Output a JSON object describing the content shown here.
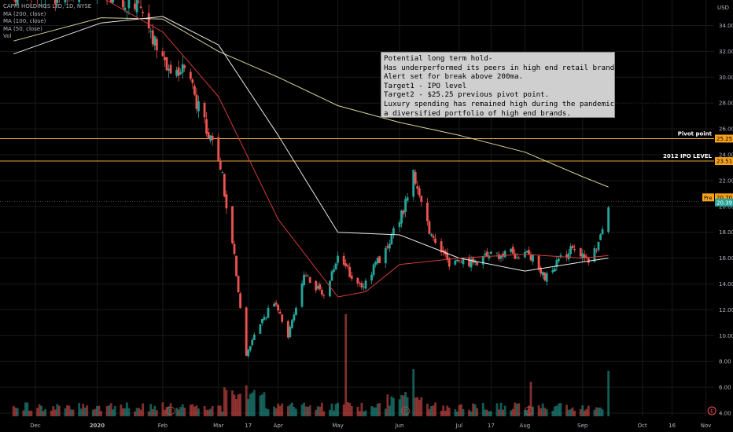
{
  "legend": {
    "symbol": "CAPRI HOLDINGS LTD, 1D, NYSE",
    "ma200": "MA (200, close)",
    "ma100": "MA (100, close)",
    "ma50": "MA (50, close)",
    "vol": "Vol"
  },
  "annotation": {
    "lines": [
      "Potential long term hold-",
      "Has underperformed its peers in high end retail brands.",
      "Alert set for break above 200ma.",
      "Target1 - IPO level",
      "Target2 - $25.25 previous pivot point.",
      "Luxury spending has remained high during the pandemic & CPRI has",
      "a diversified portfolio of high end brands."
    ]
  },
  "colors": {
    "background": "#000000",
    "up": "#26a69a",
    "down": "#ef5350",
    "ma200": "#d8d49a",
    "ma100": "#e8e8e8",
    "ma50": "#d43a3a",
    "hline": "#e8a93a",
    "grid": "#1a1a1a",
    "axis_text": "#b2b5be",
    "price_badge": "#f7a21b"
  },
  "icons": {
    "earnings": "earnings-marker-icon"
  },
  "chart_data": {
    "type": "candlestick",
    "ylim": [
      3.6,
      36
    ],
    "y_axis_label": "USD",
    "y_ticks": [
      "4.00",
      "6.00",
      "8.00",
      "10.00",
      "12.00",
      "14.00",
      "16.00",
      "18.00",
      "20.00",
      "22.00",
      "24.00",
      "26.00",
      "28.00",
      "30.00",
      "32.00",
      "34.00"
    ],
    "x_ticks": [
      "Dec",
      "2020",
      "Feb",
      "Mar",
      "17",
      "Apr",
      "May",
      "Jun",
      "Jul",
      "17",
      "Aug",
      "Sep",
      "Oct",
      "16",
      "Nov"
    ],
    "horizontal_lines": [
      {
        "label": "Pivot point",
        "value": "25.25",
        "price": 25.25
      },
      {
        "label": "2012 IPO LEVEL",
        "value": "23.51",
        "price": 23.51
      }
    ],
    "price_badges": [
      {
        "label": "Pre",
        "value": "20.70",
        "price": 20.7
      },
      {
        "label": "",
        "value": "20.39",
        "price": 20.39
      }
    ],
    "earnings_markers": [
      "Feb",
      "Jun",
      "Aug",
      "Nov"
    ],
    "anchors": [
      {
        "date": "2019-11-20",
        "price": 36.2
      },
      {
        "date": "2020-01-03",
        "price": 36.8
      },
      {
        "date": "2020-01-22",
        "price": 35.5
      },
      {
        "date": "2020-02-03",
        "price": 31.0
      },
      {
        "date": "2020-02-14",
        "price": 30.5
      },
      {
        "date": "2020-02-24",
        "price": 26.5
      },
      {
        "date": "2020-03-02",
        "price": 24.0
      },
      {
        "date": "2020-03-09",
        "price": 17.5
      },
      {
        "date": "2020-03-16",
        "price": 8.5
      },
      {
        "date": "2020-03-23",
        "price": 11.0
      },
      {
        "date": "2020-03-30",
        "price": 12.5
      },
      {
        "date": "2020-04-06",
        "price": 10.0
      },
      {
        "date": "2020-04-14",
        "price": 14.8
      },
      {
        "date": "2020-04-24",
        "price": 13.0
      },
      {
        "date": "2020-05-01",
        "price": 16.0
      },
      {
        "date": "2020-05-13",
        "price": 13.6
      },
      {
        "date": "2020-05-22",
        "price": 16.0
      },
      {
        "date": "2020-06-01",
        "price": 18.8
      },
      {
        "date": "2020-06-08",
        "price": 22.5
      },
      {
        "date": "2020-06-15",
        "price": 18.5
      },
      {
        "date": "2020-06-26",
        "price": 15.5
      },
      {
        "date": "2020-07-10",
        "price": 15.8
      },
      {
        "date": "2020-07-24",
        "price": 16.4
      },
      {
        "date": "2020-08-06",
        "price": 16.2
      },
      {
        "date": "2020-08-13",
        "price": 14.6
      },
      {
        "date": "2020-08-27",
        "price": 16.8
      },
      {
        "date": "2020-09-04",
        "price": 15.8
      },
      {
        "date": "2020-09-10",
        "price": 17.5
      },
      {
        "date": "2020-09-14",
        "price": 20.4
      }
    ],
    "ma200": [
      {
        "date": "2019-11-20",
        "price": 32.8
      },
      {
        "date": "2020-01-03",
        "price": 34.6
      },
      {
        "date": "2020-02-03",
        "price": 34.5
      },
      {
        "date": "2020-03-02",
        "price": 32.0
      },
      {
        "date": "2020-04-01",
        "price": 30.0
      },
      {
        "date": "2020-05-01",
        "price": 27.8
      },
      {
        "date": "2020-06-01",
        "price": 26.5
      },
      {
        "date": "2020-07-01",
        "price": 25.5
      },
      {
        "date": "2020-08-03",
        "price": 24.2
      },
      {
        "date": "2020-09-01",
        "price": 22.3
      },
      {
        "date": "2020-09-14",
        "price": 21.5
      }
    ],
    "ma100": [
      {
        "date": "2019-11-20",
        "price": 31.8
      },
      {
        "date": "2020-01-03",
        "price": 34.2
      },
      {
        "date": "2020-02-03",
        "price": 34.7
      },
      {
        "date": "2020-03-02",
        "price": 32.5
      },
      {
        "date": "2020-04-01",
        "price": 25.5
      },
      {
        "date": "2020-05-01",
        "price": 18.0
      },
      {
        "date": "2020-06-01",
        "price": 17.8
      },
      {
        "date": "2020-07-01",
        "price": 16.0
      },
      {
        "date": "2020-08-03",
        "price": 15.0
      },
      {
        "date": "2020-09-01",
        "price": 15.7
      },
      {
        "date": "2020-09-14",
        "price": 16.0
      }
    ],
    "ma50": [
      {
        "date": "2020-01-03",
        "price": 36.2
      },
      {
        "date": "2020-02-03",
        "price": 33.5
      },
      {
        "date": "2020-03-02",
        "price": 28.5
      },
      {
        "date": "2020-04-01",
        "price": 19.0
      },
      {
        "date": "2020-05-01",
        "price": 13.0
      },
      {
        "date": "2020-05-15",
        "price": 13.4
      },
      {
        "date": "2020-06-01",
        "price": 15.5
      },
      {
        "date": "2020-07-01",
        "price": 16.0
      },
      {
        "date": "2020-08-03",
        "price": 16.3
      },
      {
        "date": "2020-09-01",
        "price": 16.0
      },
      {
        "date": "2020-09-14",
        "price": 16.2
      }
    ]
  }
}
